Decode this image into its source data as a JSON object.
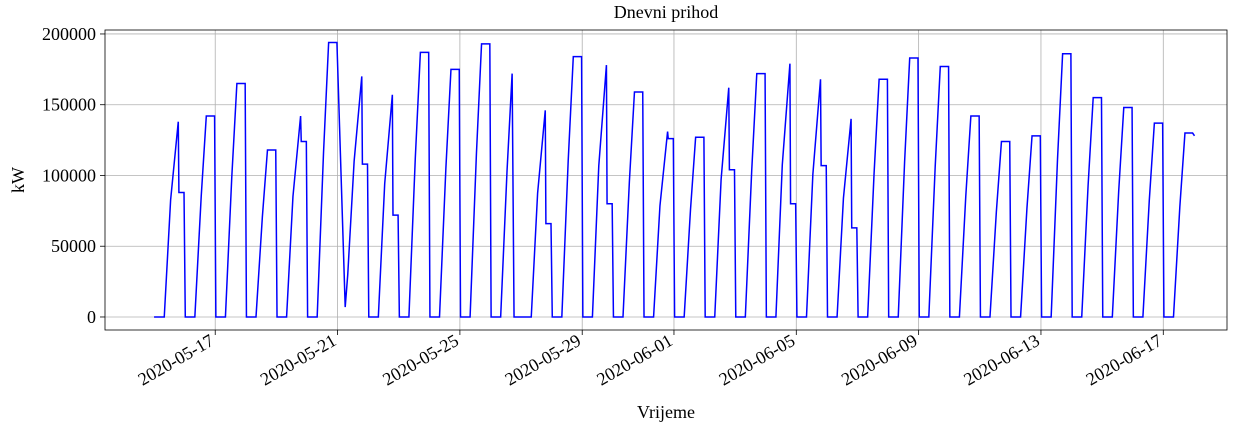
{
  "chart_data": {
    "type": "line",
    "title": "Dnevni prihod",
    "xlabel": "Vrijeme",
    "ylabel": "kW",
    "color": "#0000ff",
    "grid": true,
    "xlim": [
      "2020-05-13 09:30",
      "2020-06-19 02:00"
    ],
    "xticks": [
      "2020-05-17",
      "2020-05-21",
      "2020-05-25",
      "2020-05-29",
      "2020-06-01",
      "2020-06-05",
      "2020-06-09",
      "2020-06-13",
      "2020-06-17"
    ],
    "ylim": [
      -9200,
      202800
    ],
    "yticks": [
      0,
      50000,
      100000,
      150000,
      200000
    ],
    "x": [
      "2020-05-15 00:00",
      "2020-05-15 08:00",
      "2020-05-15 13:00",
      "2020-05-15 19:00",
      "2020-05-15 19:30",
      "2020-05-15 23:30",
      "2020-05-16 00:30",
      "2020-05-16 08:00",
      "2020-05-16 13:00",
      "2020-05-16 17:00",
      "2020-05-16 23:30",
      "2020-05-17 00:30",
      "2020-05-17 08:00",
      "2020-05-17 13:00",
      "2020-05-17 17:00",
      "2020-05-17 23:30",
      "2020-05-18 00:30",
      "2020-05-18 08:00",
      "2020-05-18 13:00",
      "2020-05-18 17:00",
      "2020-05-18 23:30",
      "2020-05-19 00:30",
      "2020-05-19 08:00",
      "2020-05-19 13:00",
      "2020-05-19 19:00",
      "2020-05-19 19:30",
      "2020-05-19 23:30",
      "2020-05-20 00:30",
      "2020-05-20 08:00",
      "2020-05-20 13:00",
      "2020-05-20 17:00",
      "2020-05-20 23:30",
      "2020-05-21 06:00",
      "2020-05-21 08:00",
      "2020-05-21 13:00",
      "2020-05-21 19:00",
      "2020-05-21 19:30",
      "2020-05-21 23:30",
      "2020-05-22 00:30",
      "2020-05-22 08:00",
      "2020-05-22 13:00",
      "2020-05-22 19:00",
      "2020-05-22 19:30",
      "2020-05-22 23:30",
      "2020-05-23 00:30",
      "2020-05-23 08:00",
      "2020-05-23 13:00",
      "2020-05-23 17:00",
      "2020-05-23 23:30",
      "2020-05-24 00:30",
      "2020-05-24 08:00",
      "2020-05-24 13:00",
      "2020-05-24 17:00",
      "2020-05-24 23:30",
      "2020-05-25 00:30",
      "2020-05-25 08:00",
      "2020-05-25 13:00",
      "2020-05-25 17:00",
      "2020-05-25 23:30",
      "2020-05-26 00:30",
      "2020-05-26 08:00",
      "2020-05-26 13:00",
      "2020-05-26 17:00",
      "2020-05-26 18:30",
      "2020-05-27 08:00",
      "2020-05-27 13:00",
      "2020-05-27 19:00",
      "2020-05-27 19:30",
      "2020-05-27 23:30",
      "2020-05-28 00:30",
      "2020-05-28 08:00",
      "2020-05-28 13:00",
      "2020-05-28 17:00",
      "2020-05-28 23:30",
      "2020-05-29 00:30",
      "2020-05-29 08:00",
      "2020-05-29 13:00",
      "2020-05-29 19:00",
      "2020-05-29 19:30",
      "2020-05-29 23:30",
      "2020-05-30 00:30",
      "2020-05-30 08:00",
      "2020-05-30 13:00",
      "2020-05-30 17:00",
      "2020-05-30 23:30",
      "2020-05-31 00:30",
      "2020-05-31 08:00",
      "2020-05-31 13:00",
      "2020-05-31 19:00",
      "2020-05-31 19:30",
      "2020-05-31 23:30",
      "2020-06-01 00:30",
      "2020-06-01 08:00",
      "2020-06-01 13:00",
      "2020-06-01 17:00",
      "2020-06-01 23:30",
      "2020-06-02 00:30",
      "2020-06-02 08:00",
      "2020-06-02 13:00",
      "2020-06-02 19:00",
      "2020-06-02 19:30",
      "2020-06-02 23:30",
      "2020-06-03 00:30",
      "2020-06-03 08:00",
      "2020-06-03 13:00",
      "2020-06-03 17:00",
      "2020-06-03 23:30",
      "2020-06-04 00:30",
      "2020-06-04 08:00",
      "2020-06-04 13:00",
      "2020-06-04 19:00",
      "2020-06-04 19:30",
      "2020-06-04 23:30",
      "2020-06-05 00:30",
      "2020-06-05 08:00",
      "2020-06-05 13:00",
      "2020-06-05 19:00",
      "2020-06-05 19:30",
      "2020-06-05 23:30",
      "2020-06-06 00:30",
      "2020-06-06 08:00",
      "2020-06-06 13:00",
      "2020-06-06 19:00",
      "2020-06-06 19:30",
      "2020-06-06 23:30",
      "2020-06-07 00:30",
      "2020-06-07 08:00",
      "2020-06-07 13:00",
      "2020-06-07 17:00",
      "2020-06-07 23:30",
      "2020-06-08 00:30",
      "2020-06-08 08:00",
      "2020-06-08 13:00",
      "2020-06-08 17:00",
      "2020-06-08 23:30",
      "2020-06-09 00:30",
      "2020-06-09 08:00",
      "2020-06-09 13:00",
      "2020-06-09 17:00",
      "2020-06-09 23:30",
      "2020-06-10 00:30",
      "2020-06-10 08:00",
      "2020-06-10 13:00",
      "2020-06-10 17:00",
      "2020-06-10 23:30",
      "2020-06-11 00:30",
      "2020-06-11 08:00",
      "2020-06-11 13:00",
      "2020-06-11 17:00",
      "2020-06-11 23:30",
      "2020-06-12 00:30",
      "2020-06-12 08:00",
      "2020-06-12 13:00",
      "2020-06-12 17:00",
      "2020-06-12 23:30",
      "2020-06-13 00:30",
      "2020-06-13 08:00",
      "2020-06-13 13:00",
      "2020-06-13 17:00",
      "2020-06-13 23:30",
      "2020-06-14 00:30",
      "2020-06-14 08:00",
      "2020-06-14 13:00",
      "2020-06-14 17:00",
      "2020-06-14 23:30",
      "2020-06-15 00:30",
      "2020-06-15 08:00",
      "2020-06-15 13:00",
      "2020-06-15 17:00",
      "2020-06-15 23:30",
      "2020-06-16 00:30",
      "2020-06-16 08:00",
      "2020-06-16 13:00",
      "2020-06-16 17:00",
      "2020-06-16 23:30",
      "2020-06-17 00:30",
      "2020-06-17 08:00",
      "2020-06-17 13:00",
      "2020-06-17 17:00",
      "2020-06-17 23:00",
      "2020-06-18 00:30"
    ],
    "values": [
      0,
      0,
      82800,
      138000,
      88000,
      88000,
      0,
      0,
      85200,
      142000,
      142000,
      0,
      0,
      99000,
      165000,
      165000,
      0,
      0,
      70800,
      118000,
      118000,
      0,
      0,
      85200,
      142000,
      124000,
      124000,
      0,
      0,
      116400,
      194000,
      194000,
      7000,
      30000,
      110000,
      170000,
      108000,
      108000,
      0,
      0,
      94200,
      157000,
      72000,
      72000,
      0,
      0,
      112200,
      187000,
      187000,
      0,
      0,
      105000,
      175000,
      175000,
      0,
      0,
      115800,
      193000,
      193000,
      0,
      0,
      103200,
      172000,
      0,
      0,
      87600,
      146000,
      66000,
      66000,
      0,
      0,
      110400,
      184000,
      184000,
      0,
      0,
      106800,
      178000,
      80000,
      80000,
      0,
      0,
      95400,
      159000,
      159000,
      0,
      0,
      78600,
      131000,
      126000,
      126000,
      0,
      0,
      76200,
      127000,
      127000,
      0,
      0,
      97200,
      162000,
      104000,
      104000,
      0,
      0,
      103200,
      172000,
      172000,
      0,
      0,
      107400,
      179000,
      80000,
      80000,
      0,
      0,
      100800,
      168000,
      107000,
      107000,
      0,
      0,
      84000,
      140000,
      63000,
      63000,
      0,
      0,
      100800,
      168000,
      168000,
      0,
      0,
      109800,
      183000,
      183000,
      0,
      0,
      106200,
      177000,
      177000,
      0,
      0,
      85200,
      142000,
      142000,
      0,
      0,
      74400,
      124000,
      124000,
      0,
      0,
      76800,
      128000,
      128000,
      0,
      0,
      111600,
      186000,
      186000,
      0,
      0,
      93000,
      155000,
      155000,
      0,
      0,
      88800,
      148000,
      148000,
      0,
      0,
      82200,
      137000,
      137000,
      0,
      0,
      78000,
      130000,
      130000,
      128000
    ]
  }
}
